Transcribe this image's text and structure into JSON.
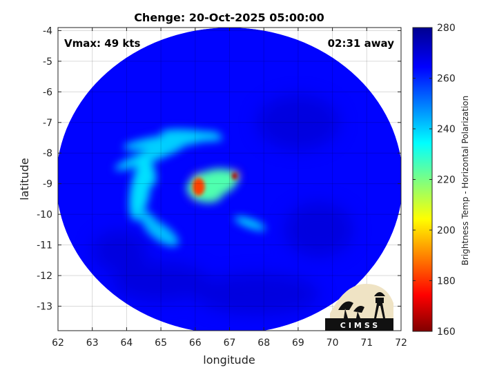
{
  "chart_data": {
    "type": "heatmap",
    "title": "Chenge: 20-Oct-2025 05:00:00",
    "xlabel": "longitude",
    "ylabel": "latitude",
    "xlim": [
      62,
      72
    ],
    "ylim": [
      -13.8,
      -3.9
    ],
    "x_ticks": [
      "62",
      "63",
      "64",
      "65",
      "66",
      "67",
      "68",
      "69",
      "70",
      "71",
      "72"
    ],
    "y_ticks": [
      "-4",
      "-5",
      "-6",
      "-7",
      "-8",
      "-9",
      "-10",
      "-11",
      "-12",
      "-13"
    ],
    "grid": true,
    "annotations": {
      "vmax": "Vmax: 49 kts",
      "time_away": "02:31 away"
    },
    "colorbar": {
      "label": "Brightness Temp - Horizontal Polarization",
      "range": [
        160,
        280
      ],
      "ticks": [
        "280",
        "260",
        "240",
        "220",
        "200",
        "180",
        "160"
      ],
      "colormap": "jet"
    },
    "swath": {
      "center": [
        67.0,
        -8.9
      ],
      "lon_radius": 5.05,
      "lat_radius": 5.0,
      "background_value": 264
    },
    "features": [
      {
        "name": "cold-core-1",
        "lon": 66.1,
        "lat": -9.1,
        "value": 190
      },
      {
        "name": "cold-core-2",
        "lon": 67.15,
        "lat": -8.75,
        "value": 180
      },
      {
        "name": "inner-band",
        "lon": 66.5,
        "lat": -9.0,
        "value": 225
      },
      {
        "name": "band-north",
        "lon": 65.3,
        "lat": -7.6,
        "value": 240
      },
      {
        "name": "band-west",
        "lon": 64.4,
        "lat": -9.2,
        "value": 238
      },
      {
        "name": "band-southwest",
        "lon": 65.0,
        "lat": -10.6,
        "value": 242
      },
      {
        "name": "band-east",
        "lon": 67.6,
        "lat": -10.3,
        "value": 238
      }
    ],
    "logo_text": "CIMSS"
  }
}
